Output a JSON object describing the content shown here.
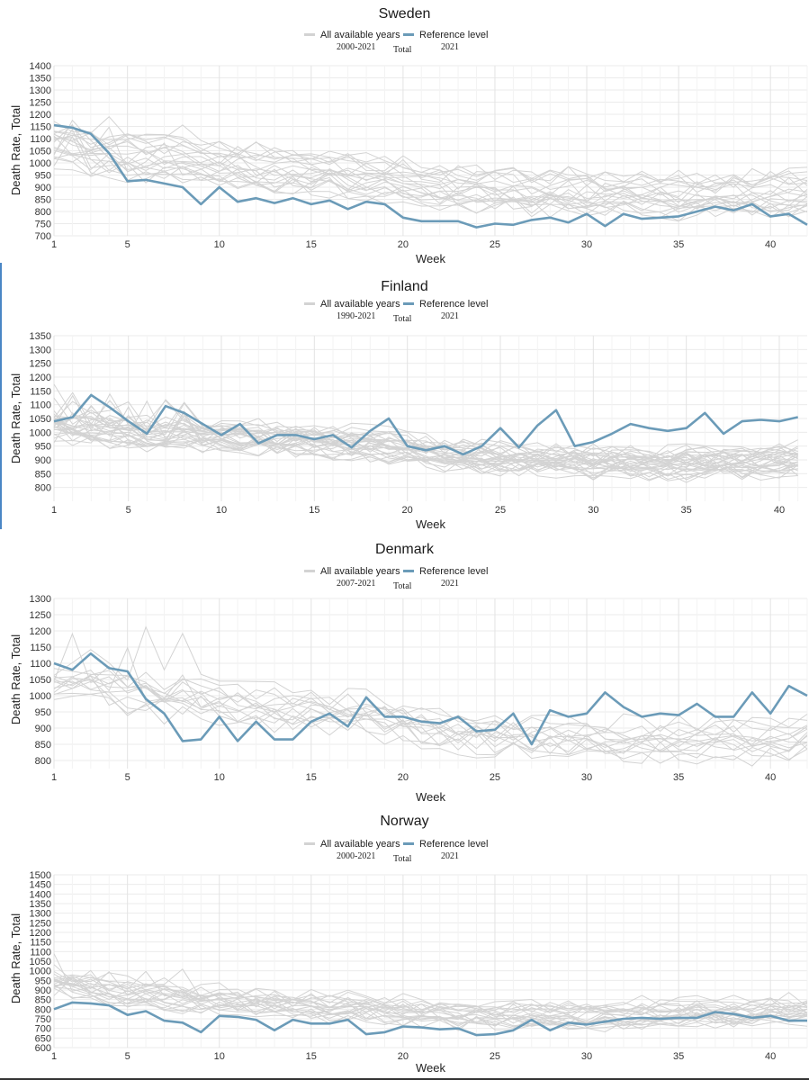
{
  "legend": {
    "all_label": "All available years",
    "ref_label": "Reference level",
    "ref_year": "2021",
    "total_label": "Total"
  },
  "colors": {
    "grey": "#d3d3d3",
    "ref": "#6b9bb8",
    "grid": "#ebebeb"
  },
  "chart_data": [
    {
      "type": "line",
      "title": "Sweden",
      "years_range": "2000-2021",
      "xlabel": "Week",
      "ylabel": "Death Rate, Total",
      "xlim": [
        1,
        42
      ],
      "ylim": [
        700,
        1400
      ],
      "x_ticks": [
        1,
        5,
        10,
        15,
        20,
        25,
        30,
        35,
        40
      ],
      "y_ticks": [
        700,
        750,
        800,
        850,
        900,
        950,
        1000,
        1050,
        1100,
        1150,
        1200,
        1250,
        1300,
        1350,
        1400
      ],
      "series": [
        {
          "name": "Reference level",
          "values": [
            1155,
            1145,
            1120,
            1040,
            925,
            930,
            915,
            900,
            830,
            900,
            840,
            855,
            835,
            855,
            830,
            845,
            810,
            840,
            830,
            775,
            760,
            760,
            760,
            735,
            750,
            745,
            765,
            775,
            755,
            790,
            740,
            790,
            770,
            775,
            780,
            800,
            820,
            805,
            830,
            780,
            790,
            745
          ]
        }
      ],
      "background_series": {
        "count": 21,
        "base": [
          1080,
          1060,
          1040,
          1030,
          1020,
          1015,
          1010,
          1005,
          1000,
          995,
          990,
          980,
          975,
          970,
          965,
          960,
          955,
          945,
          935,
          925,
          915,
          905,
          900,
          895,
          890,
          885,
          880,
          878,
          875,
          872,
          870,
          868,
          866,
          864,
          862,
          862,
          864,
          866,
          868,
          870,
          872,
          874
        ],
        "spread": 85,
        "seed": 11
      }
    },
    {
      "type": "line",
      "title": "Finland",
      "years_range": "1990-2021",
      "xlabel": "Week",
      "ylabel": "Death Rate, Total",
      "xlim": [
        1,
        41.5
      ],
      "ylim": [
        750,
        1350
      ],
      "x_ticks": [
        1,
        5,
        10,
        15,
        20,
        25,
        30,
        35,
        40
      ],
      "y_ticks": [
        800,
        850,
        900,
        950,
        1000,
        1050,
        1100,
        1150,
        1200,
        1250,
        1300,
        1350
      ],
      "series": [
        {
          "name": "Reference level",
          "values": [
            1040,
            1055,
            1135,
            1090,
            1040,
            995,
            1095,
            1070,
            1030,
            990,
            1030,
            960,
            990,
            990,
            975,
            990,
            945,
            1005,
            1050,
            950,
            935,
            950,
            920,
            950,
            1015,
            945,
            1025,
            1080,
            950,
            965,
            995,
            1030,
            1015,
            1005,
            1015,
            1070,
            995,
            1040,
            1045,
            1040,
            1055
          ]
        }
      ],
      "background_series": {
        "count": 31,
        "base": [
          1030,
          1020,
          1015,
          1010,
          1005,
          1000,
          995,
          1000,
          995,
          990,
          985,
          985,
          980,
          980,
          975,
          970,
          965,
          960,
          955,
          945,
          935,
          925,
          920,
          915,
          912,
          910,
          905,
          905,
          900,
          898,
          896,
          894,
          892,
          892,
          894,
          896,
          898,
          900,
          902,
          905,
          908
        ],
        "spread": 60,
        "seed": 23
      }
    },
    {
      "type": "line",
      "title": "Denmark",
      "years_range": "2007-2021",
      "xlabel": "Week",
      "ylabel": "Death Rate, Total",
      "xlim": [
        1,
        42
      ],
      "ylim": [
        775,
        1300
      ],
      "x_ticks": [
        1,
        5,
        10,
        15,
        20,
        25,
        30,
        35,
        40
      ],
      "y_ticks": [
        800,
        850,
        900,
        950,
        1000,
        1050,
        1100,
        1150,
        1200,
        1250,
        1300
      ],
      "series": [
        {
          "name": "Reference level",
          "values": [
            1100,
            1080,
            1130,
            1085,
            1075,
            990,
            945,
            860,
            865,
            935,
            860,
            920,
            865,
            865,
            920,
            945,
            905,
            995,
            935,
            935,
            920,
            915,
            935,
            890,
            895,
            945,
            850,
            955,
            935,
            945,
            1010,
            965,
            935,
            945,
            940,
            975,
            935,
            935,
            1010,
            945,
            1030,
            1000
          ]
        }
      ],
      "background_series": {
        "count": 14,
        "base": [
          1040,
          1035,
          1030,
          1025,
          1020,
          1010,
          1000,
          995,
          990,
          985,
          975,
          970,
          965,
          960,
          955,
          950,
          945,
          940,
          930,
          920,
          910,
          900,
          895,
          890,
          885,
          880,
          878,
          876,
          874,
          872,
          870,
          868,
          866,
          864,
          862,
          862,
          864,
          866,
          868,
          870,
          872,
          874
        ],
        "spread": 70,
        "seed": 37
      }
    },
    {
      "type": "line",
      "title": "Norway",
      "years_range": "2000-2021",
      "xlabel": "Week",
      "ylabel": "Death Rate, Total",
      "xlim": [
        1,
        42
      ],
      "ylim": [
        600,
        1500
      ],
      "x_ticks": [
        1,
        5,
        10,
        15,
        20,
        25,
        30,
        35,
        40
      ],
      "y_ticks": [
        600,
        650,
        700,
        750,
        800,
        850,
        900,
        950,
        1000,
        1050,
        1100,
        1150,
        1200,
        1250,
        1300,
        1350,
        1400,
        1450,
        1500
      ],
      "series": [
        {
          "name": "Reference level",
          "values": [
            800,
            835,
            830,
            820,
            770,
            790,
            740,
            730,
            680,
            765,
            760,
            745,
            690,
            745,
            725,
            725,
            745,
            670,
            680,
            710,
            705,
            695,
            700,
            665,
            670,
            690,
            745,
            690,
            730,
            720,
            735,
            750,
            755,
            750,
            755,
            755,
            785,
            775,
            755,
            765,
            740,
            740
          ]
        }
      ],
      "background_series": {
        "count": 21,
        "base": [
          960,
          940,
          920,
          905,
          895,
          885,
          878,
          870,
          862,
          855,
          850,
          845,
          840,
          835,
          830,
          825,
          822,
          818,
          812,
          805,
          798,
          792,
          788,
          785,
          782,
          780,
          780,
          780,
          780,
          780,
          780,
          782,
          784,
          786,
          788,
          790,
          792,
          794,
          796,
          798,
          800,
          802
        ],
        "spread": 80,
        "seed": 53
      }
    }
  ]
}
